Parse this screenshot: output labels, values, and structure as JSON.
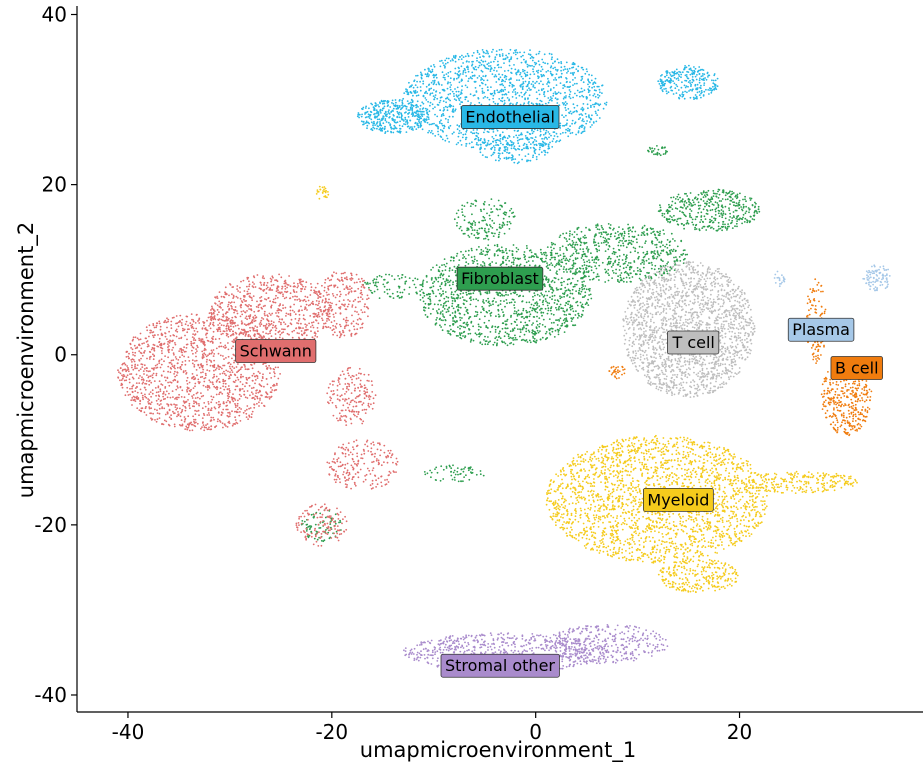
{
  "chart_data": {
    "type": "scatter",
    "title": "",
    "xlabel": "umapmicroenvironment_1",
    "ylabel": "umapmicroenvironment_2",
    "xlim": [
      -45,
      38
    ],
    "ylim": [
      -42,
      41
    ],
    "x_ticks": [
      -40,
      -20,
      0,
      20
    ],
    "x_tick_labels": [
      "-40",
      "-20",
      "0",
      "20"
    ],
    "y_ticks": [
      40,
      20,
      0,
      -20,
      -40
    ],
    "y_tick_labels": [
      "40",
      "20",
      "0",
      "-20",
      "-40"
    ],
    "grid": false,
    "legend": "none",
    "clusters": [
      {
        "name": "Endothelial",
        "color": "#29B8E6",
        "label_bg": "#29B8E6",
        "label_at": [
          -2.5,
          28
        ],
        "regions": [
          {
            "center": [
              -3,
              30
            ],
            "radius": [
              10,
              6
            ],
            "count": 1500
          },
          {
            "center": [
              -14,
              28
            ],
            "radius": [
              3.5,
              2
            ],
            "count": 350
          },
          {
            "center": [
              15,
              32
            ],
            "radius": [
              3,
              2
            ],
            "count": 250
          },
          {
            "center": [
              -2,
              24
            ],
            "radius": [
              4,
              1.5
            ],
            "count": 120
          }
        ]
      },
      {
        "name": "Fibroblast",
        "color": "#2E9E4F",
        "label_bg": "#2E9E4F",
        "label_at": [
          -3.5,
          9
        ],
        "regions": [
          {
            "center": [
              -3,
              7
            ],
            "radius": [
              8.5,
              6
            ],
            "count": 1300
          },
          {
            "center": [
              8,
              12
            ],
            "radius": [
              7,
              3.5
            ],
            "count": 600
          },
          {
            "center": [
              17,
              17
            ],
            "radius": [
              5,
              2.5
            ],
            "count": 400
          },
          {
            "center": [
              -5,
              16
            ],
            "radius": [
              3,
              2.5
            ],
            "count": 150
          },
          {
            "center": [
              -14,
              8
            ],
            "radius": [
              3,
              1.5
            ],
            "count": 80
          },
          {
            "center": [
              -8,
              -14
            ],
            "radius": [
              3,
              1
            ],
            "count": 60
          },
          {
            "center": [
              -21,
              -20
            ],
            "radius": [
              2,
              2
            ],
            "count": 80
          },
          {
            "center": [
              12,
              24
            ],
            "radius": [
              1,
              0.6
            ],
            "count": 30
          }
        ]
      },
      {
        "name": "Schwann",
        "color": "#E06E6E",
        "label_bg": "#E06E6E",
        "label_at": [
          -25.5,
          0.5
        ],
        "regions": [
          {
            "center": [
              -33,
              -2
            ],
            "radius": [
              8,
              7
            ],
            "count": 1400
          },
          {
            "center": [
              -26,
              5
            ],
            "radius": [
              6,
              4.5
            ],
            "count": 700
          },
          {
            "center": [
              -19,
              6
            ],
            "radius": [
              3,
              4
            ],
            "count": 250
          },
          {
            "center": [
              -18,
              -5
            ],
            "radius": [
              2.5,
              3.5
            ],
            "count": 180
          },
          {
            "center": [
              -17,
              -13
            ],
            "radius": [
              3.5,
              3
            ],
            "count": 200
          },
          {
            "center": [
              -21,
              -20
            ],
            "radius": [
              2.5,
              2.5
            ],
            "count": 120
          }
        ]
      },
      {
        "name": "T cell",
        "color": "#BEBEBE",
        "label_bg": "#BEBEBE",
        "label_at": [
          15.5,
          1.5
        ],
        "regions": [
          {
            "center": [
              15,
              3
            ],
            "radius": [
              6.5,
              8
            ],
            "count": 1800
          }
        ]
      },
      {
        "name": "Plasma",
        "color": "#A6C8E8",
        "label_bg": "#A6C8E8",
        "label_at": [
          28,
          3
        ],
        "regions": [
          {
            "center": [
              33.5,
              9
            ],
            "radius": [
              1.4,
              1.6
            ],
            "count": 90
          },
          {
            "center": [
              24,
              9
            ],
            "radius": [
              0.6,
              1
            ],
            "count": 20
          }
        ]
      },
      {
        "name": "B cell",
        "color": "#F07C0E",
        "label_bg": "#F07C0E",
        "label_at": [
          31.5,
          -1.5
        ],
        "regions": [
          {
            "center": [
              30.5,
              -5
            ],
            "radius": [
              2.5,
              4.5
            ],
            "count": 400
          },
          {
            "center": [
              27.5,
              4
            ],
            "radius": [
              1,
              5
            ],
            "count": 120
          },
          {
            "center": [
              8,
              -2
            ],
            "radius": [
              0.8,
              0.8
            ],
            "count": 30
          }
        ]
      },
      {
        "name": "Myeloid",
        "color": "#F5CB1C",
        "label_bg": "#F5CB1C",
        "label_at": [
          14,
          -17
        ],
        "regions": [
          {
            "center": [
              12,
              -17
            ],
            "radius": [
              11,
              7.5
            ],
            "count": 2200
          },
          {
            "center": [
              16,
              -26
            ],
            "radius": [
              4,
              2
            ],
            "count": 250
          },
          {
            "center": [
              26,
              -15
            ],
            "radius": [
              6,
              1.3
            ],
            "count": 220
          },
          {
            "center": [
              -21,
              19
            ],
            "radius": [
              0.7,
              0.8
            ],
            "count": 25
          }
        ]
      },
      {
        "name": "Stromal other",
        "color": "#A98BCC",
        "label_bg": "#A98BCC",
        "label_at": [
          -3.5,
          -36.5
        ],
        "regions": [
          {
            "center": [
              -3,
              -35
            ],
            "radius": [
              10,
              2.3
            ],
            "count": 650
          },
          {
            "center": [
              7,
              -34
            ],
            "radius": [
              6,
              2.3
            ],
            "count": 350
          }
        ]
      }
    ]
  }
}
